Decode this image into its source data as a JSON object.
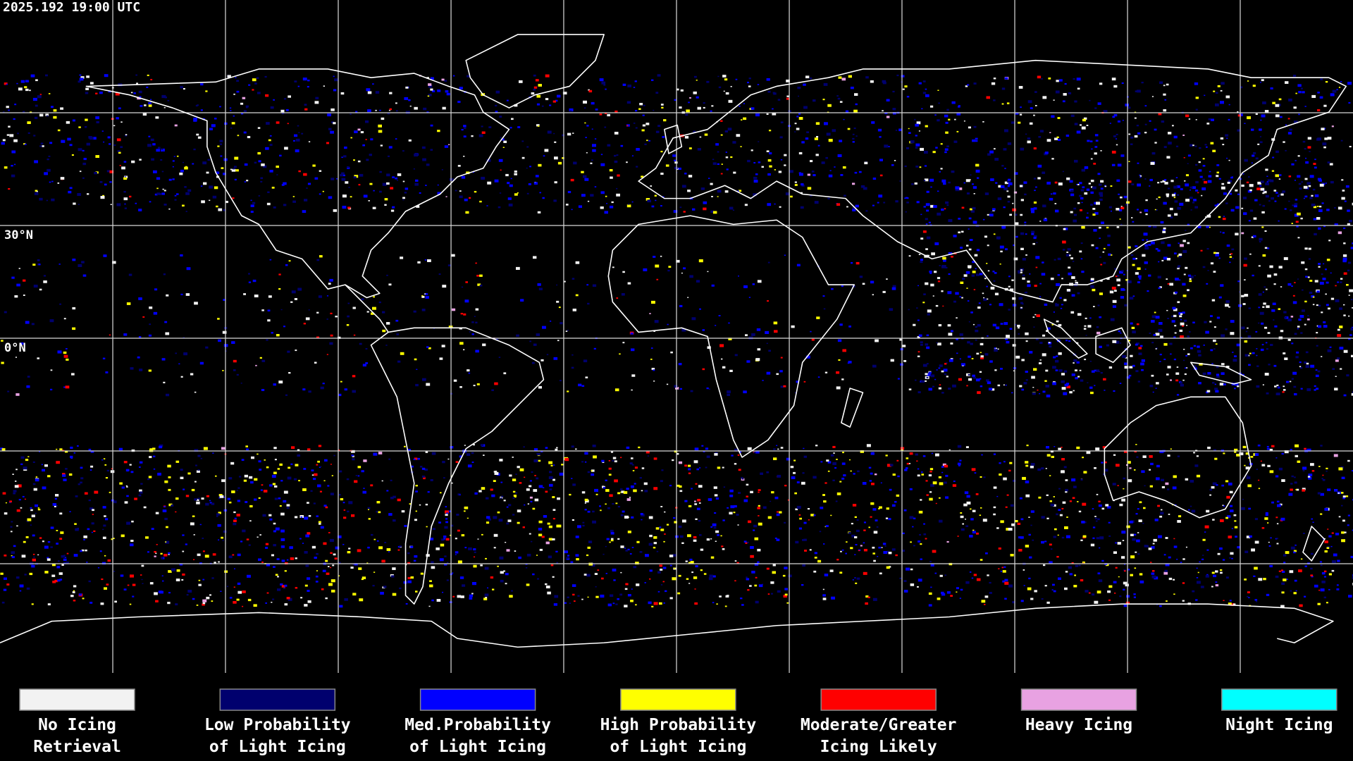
{
  "header": {
    "timestamp": "2025.192 19:00 UTC"
  },
  "map": {
    "latitude_labels": [
      "30°N",
      "0°N"
    ]
  },
  "legend": {
    "items": [
      {
        "label": [
          "No Icing",
          "Retrieval"
        ],
        "color": "#f2f2f2"
      },
      {
        "label": [
          "Low Probability",
          "of Light Icing"
        ],
        "color": "#00006e"
      },
      {
        "label": [
          "Med.Probability",
          "of Light Icing"
        ],
        "color": "#0000ff"
      },
      {
        "label": [
          "High Probability",
          "of Light Icing"
        ],
        "color": "#ffff00"
      },
      {
        "label": [
          "Moderate/Greater",
          "Icing Likely"
        ],
        "color": "#ff0000"
      },
      {
        "label": [
          "Heavy Icing"
        ],
        "color": "#e8a2e2"
      },
      {
        "label": [
          "Night Icing"
        ],
        "color": "#00ffff"
      }
    ]
  }
}
